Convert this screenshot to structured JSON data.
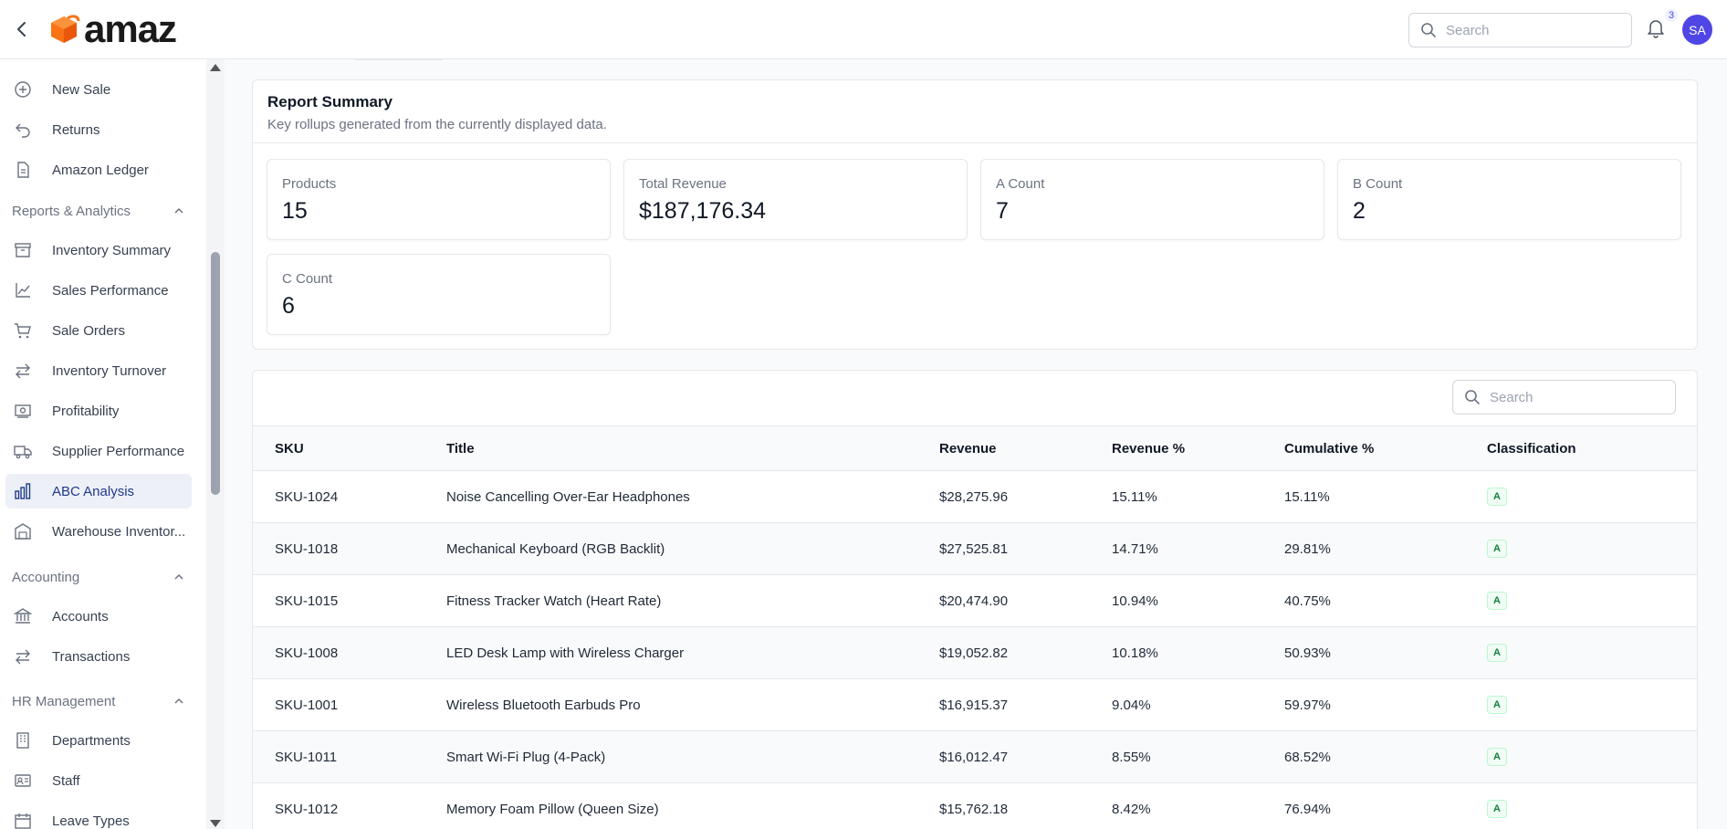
{
  "header": {
    "logo_text": "amaz",
    "search_placeholder": "Search",
    "notification_count": "3",
    "avatar_initials": "SA"
  },
  "sidebar": {
    "items_top": [
      {
        "label": "New Sale",
        "icon": "plus-circle-icon"
      },
      {
        "label": "Returns",
        "icon": "return-arrow-icon"
      },
      {
        "label": "Amazon Ledger",
        "icon": "document-icon"
      }
    ],
    "section_reports": "Reports & Analytics",
    "reports_items": [
      {
        "label": "Inventory Summary",
        "icon": "archive-box-icon"
      },
      {
        "label": "Sales Performance",
        "icon": "line-chart-icon"
      },
      {
        "label": "Sale Orders",
        "icon": "cart-icon"
      },
      {
        "label": "Inventory Turnover",
        "icon": "swap-arrows-icon"
      },
      {
        "label": "Profitability",
        "icon": "money-icon"
      },
      {
        "label": "Supplier Performance",
        "icon": "truck-icon"
      },
      {
        "label": "ABC Analysis",
        "icon": "bar-chart-icon"
      },
      {
        "label": "Warehouse Inventor...",
        "icon": "warehouse-icon"
      }
    ],
    "section_accounting": "Accounting",
    "accounting_items": [
      {
        "label": "Accounts",
        "icon": "bank-icon"
      },
      {
        "label": "Transactions",
        "icon": "swap-arrows-icon"
      }
    ],
    "section_hr": "HR Management",
    "hr_items": [
      {
        "label": "Departments",
        "icon": "building-icon"
      },
      {
        "label": "Staff",
        "icon": "id-card-icon"
      },
      {
        "label": "Leave Types",
        "icon": "calendar-icon"
      }
    ],
    "active_item": "ABC Analysis"
  },
  "summary": {
    "title": "Report Summary",
    "subtitle": "Key rollups generated from the currently displayed data.",
    "stats": [
      {
        "label": "Products",
        "value": "15"
      },
      {
        "label": "Total Revenue",
        "value": "$187,176.34"
      },
      {
        "label": "A Count",
        "value": "7"
      },
      {
        "label": "B Count",
        "value": "2"
      },
      {
        "label": "C Count",
        "value": "6"
      }
    ]
  },
  "table": {
    "search_placeholder": "Search",
    "columns": [
      "SKU",
      "Title",
      "Revenue",
      "Revenue %",
      "Cumulative %",
      "Classification"
    ],
    "rows": [
      {
        "sku": "SKU-1024",
        "title": "Noise Cancelling Over-Ear Headphones",
        "revenue": "$28,275.96",
        "revenue_pct": "15.11%",
        "cumulative_pct": "15.11%",
        "classification": "A"
      },
      {
        "sku": "SKU-1018",
        "title": "Mechanical Keyboard (RGB Backlit)",
        "revenue": "$27,525.81",
        "revenue_pct": "14.71%",
        "cumulative_pct": "29.81%",
        "classification": "A"
      },
      {
        "sku": "SKU-1015",
        "title": "Fitness Tracker Watch (Heart Rate)",
        "revenue": "$20,474.90",
        "revenue_pct": "10.94%",
        "cumulative_pct": "40.75%",
        "classification": "A"
      },
      {
        "sku": "SKU-1008",
        "title": "LED Desk Lamp with Wireless Charger",
        "revenue": "$19,052.82",
        "revenue_pct": "10.18%",
        "cumulative_pct": "50.93%",
        "classification": "A"
      },
      {
        "sku": "SKU-1001",
        "title": "Wireless Bluetooth Earbuds Pro",
        "revenue": "$16,915.37",
        "revenue_pct": "9.04%",
        "cumulative_pct": "59.97%",
        "classification": "A"
      },
      {
        "sku": "SKU-1011",
        "title": "Smart Wi-Fi Plug (4-Pack)",
        "revenue": "$16,012.47",
        "revenue_pct": "8.55%",
        "cumulative_pct": "68.52%",
        "classification": "A"
      },
      {
        "sku": "SKU-1012",
        "title": "Memory Foam Pillow (Queen Size)",
        "revenue": "$15,762.18",
        "revenue_pct": "8.42%",
        "cumulative_pct": "76.94%",
        "classification": "A"
      }
    ]
  },
  "colors": {
    "brand_orange": "#f97316",
    "accent_indigo": "#4f46e5",
    "active_bg": "#eef0f8",
    "badge_green": "#15803d"
  }
}
